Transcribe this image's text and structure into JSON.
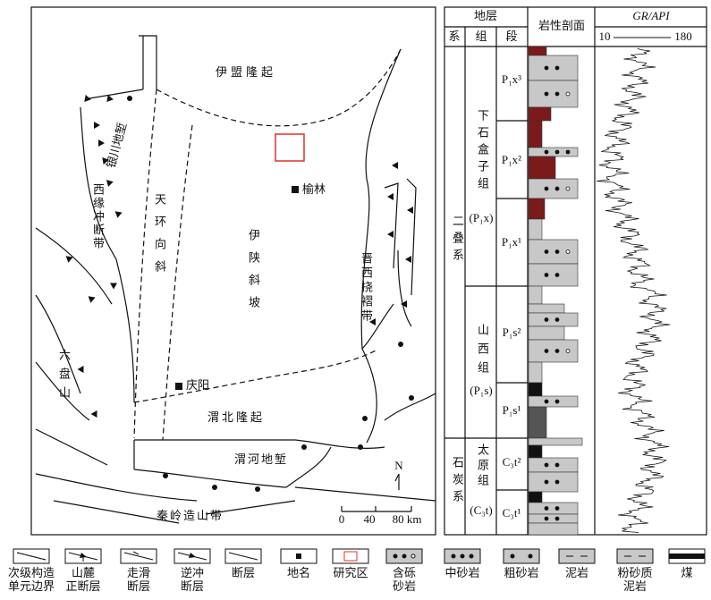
{
  "map": {
    "regions": [
      "伊盟隆起",
      "伊陕斜坡",
      "天环向斜",
      "晋西挠褶带",
      "西缘冲断带",
      "银川地堑",
      "六盘山",
      "渭北隆起",
      "渭河地堑",
      "秦岭造山带"
    ],
    "places": [
      "榆林",
      "庆阳"
    ],
    "scale": [
      "0",
      "40",
      "80 km"
    ],
    "north": "N"
  },
  "column": {
    "header": {
      "strata": "地层",
      "system": "系",
      "formation": "组",
      "member": "段",
      "lithology": "岩性剖面",
      "log": "GR/API",
      "log_min": 10,
      "log_max": 180
    },
    "systems": [
      "二叠系",
      "石炭系"
    ],
    "formations": [
      {
        "name": "下石盒子组",
        "code": "(P₁x)"
      },
      {
        "name": "山西组",
        "code": "(P₁s)"
      },
      {
        "name": "太原组",
        "code": "(C₃t)"
      }
    ],
    "members": [
      "P₁x³",
      "P₁x²",
      "P₁x¹",
      "P₁s²",
      "P₁s¹",
      "C₃t²",
      "C₃t¹"
    ]
  },
  "legend": [
    {
      "lines": [
        "次级构造",
        "单元边界"
      ]
    },
    {
      "lines": [
        "山麓",
        "正断层"
      ]
    },
    {
      "lines": [
        "走滑",
        "断层"
      ]
    },
    {
      "lines": [
        "逆冲",
        "断层"
      ]
    },
    {
      "lines": [
        "断层"
      ]
    },
    {
      "lines": [
        "地名"
      ]
    },
    {
      "lines": [
        "研究区"
      ]
    },
    {
      "lines": [
        "含砾",
        "砂岩"
      ]
    },
    {
      "lines": [
        "中砂岩"
      ]
    },
    {
      "lines": [
        "粗砂岩"
      ]
    },
    {
      "lines": [
        "泥岩"
      ]
    },
    {
      "lines": [
        "粉砂质",
        "泥岩"
      ]
    },
    {
      "lines": [
        "煤"
      ]
    }
  ]
}
